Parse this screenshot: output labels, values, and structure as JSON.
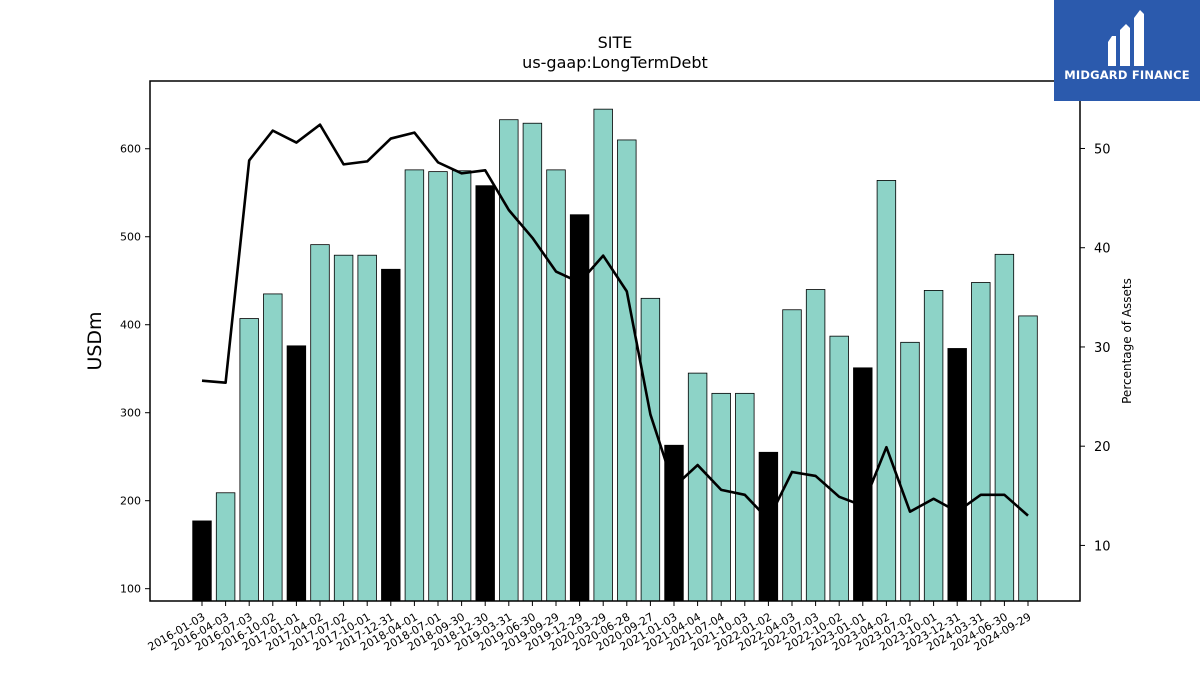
{
  "brand": {
    "name": "MIDGARD FINANCE",
    "bg_color": "#2b5aad",
    "icon": "midgard-logo-icon"
  },
  "chart_data": {
    "type": "bar",
    "title": "SITE",
    "subtitle": "us-gaap:LongTermDebt",
    "ylabel": "USDm",
    "y2label": "Percentage of Assets",
    "ylim": [
      86,
      677
    ],
    "y2lim": [
      4.4,
      56.8
    ],
    "yticks": [
      100,
      200,
      300,
      400,
      500,
      600
    ],
    "y2ticks": [
      10,
      20,
      30,
      40,
      50
    ],
    "grid": false,
    "colors": {
      "bar": "#8dd3c7",
      "bar_year_end": "#000000",
      "line": "#000000"
    },
    "categories": [
      "2016-01-03",
      "2016-04-03",
      "2016-07-03",
      "2016-10-02",
      "2017-01-01",
      "2017-04-02",
      "2017-07-02",
      "2017-10-01",
      "2017-12-31",
      "2018-04-01",
      "2018-07-01",
      "2018-09-30",
      "2018-12-30",
      "2019-03-31",
      "2019-06-30",
      "2019-09-29",
      "2019-12-29",
      "2020-03-29",
      "2020-06-28",
      "2020-09-27",
      "2021-01-03",
      "2021-04-04",
      "2021-07-04",
      "2021-10-03",
      "2022-01-02",
      "2022-04-03",
      "2022-07-03",
      "2022-10-02",
      "2023-01-01",
      "2023-04-02",
      "2023-07-02",
      "2023-10-01",
      "2023-12-31",
      "2024-03-31",
      "2024-06-30",
      "2024-09-29"
    ],
    "series": [
      {
        "kind": "bar",
        "axis": "left",
        "values": [
          177,
          209,
          407,
          435,
          376,
          491,
          479,
          479,
          463,
          576,
          574,
          575,
          558,
          633,
          629,
          576,
          525,
          645,
          610,
          430,
          263,
          345,
          322,
          322,
          255,
          417,
          440,
          387,
          351,
          564,
          380,
          439,
          373,
          448,
          480,
          410
        ],
        "highlight_every": 4,
        "highlight_offset": 0
      },
      {
        "kind": "line",
        "axis": "right",
        "values": [
          26.6,
          26.4,
          48.8,
          51.8,
          50.6,
          52.4,
          48.4,
          48.7,
          51.0,
          51.6,
          48.6,
          47.5,
          47.8,
          43.8,
          41.0,
          37.6,
          36.5,
          39.2,
          35.6,
          23.2,
          15.9,
          18.1,
          15.6,
          15.1,
          12.6,
          17.4,
          17.0,
          14.9,
          14.0,
          19.9,
          13.4,
          14.7,
          13.4,
          15.1,
          15.1,
          13.0
        ]
      }
    ]
  }
}
